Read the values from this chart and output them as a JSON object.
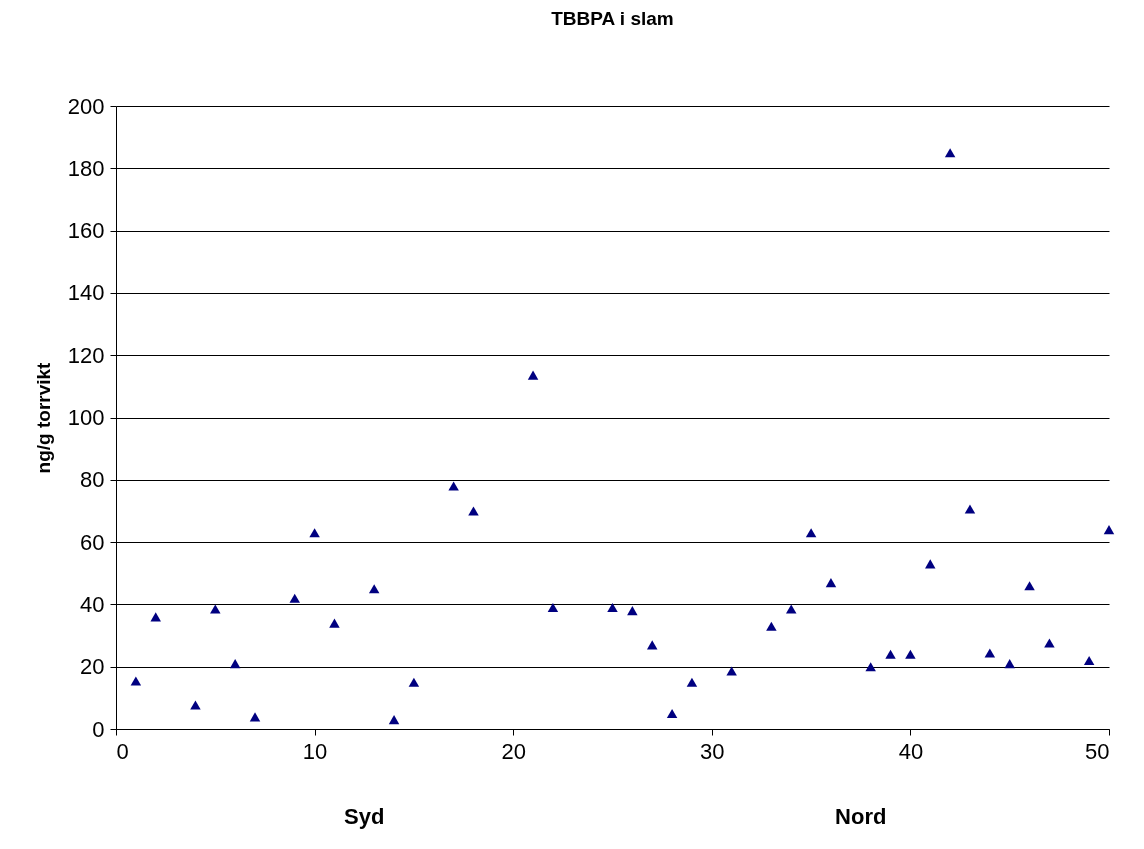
{
  "chart_data": {
    "type": "scatter",
    "title": "TBBPA i slam",
    "ylabel": "ng/g torrvikt",
    "x": [
      1,
      2,
      4,
      5,
      6,
      7,
      9,
      10,
      11,
      13,
      14,
      15,
      17,
      18,
      21,
      22,
      25,
      26,
      27,
      28,
      29,
      31,
      33,
      34,
      35,
      36,
      38,
      39,
      40,
      41,
      42,
      43,
      44,
      45,
      46,
      47,
      49,
      50
    ],
    "series": [
      {
        "color": "#000080",
        "values": [
          15.4,
          36,
          7.7,
          38.5,
          21,
          3.9,
          42,
          63,
          34,
          45,
          3,
          15,
          78,
          70,
          113.6,
          39,
          39,
          38,
          27,
          5,
          15,
          18.6,
          33,
          38.5,
          63,
          47,
          20,
          24,
          24,
          53,
          185,
          70.6,
          24.4,
          21,
          46,
          27.6,
          22,
          64
        ]
      }
    ],
    "xlim": [
      0,
      50
    ],
    "xticks": [
      0,
      10,
      20,
      30,
      40,
      50
    ],
    "ylim": [
      0,
      200
    ],
    "yticks": [
      0,
      20,
      40,
      60,
      80,
      100,
      120,
      140,
      160,
      180,
      200
    ],
    "grid": "y",
    "marker": "triangle",
    "legend": false,
    "annotations": [
      "Syd",
      "Nord"
    ]
  }
}
